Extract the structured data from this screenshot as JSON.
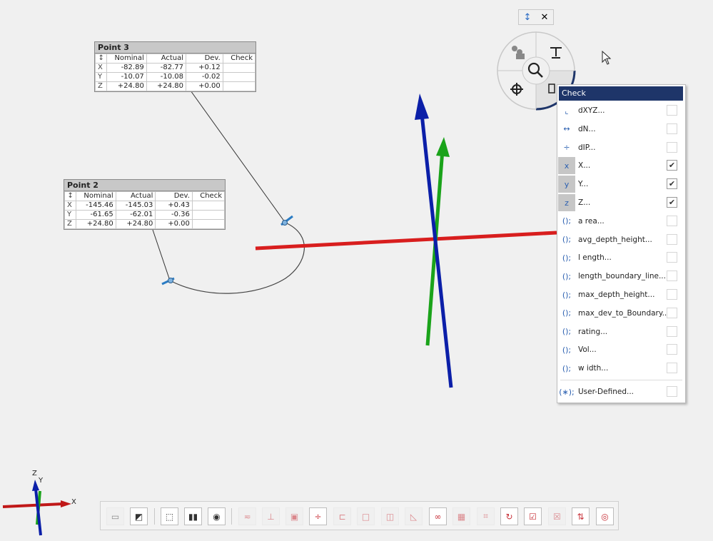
{
  "point3": {
    "title": "Point 3",
    "headers": [
      "↕",
      "Nominal",
      "Actual",
      "Dev.",
      "Check"
    ],
    "rows": [
      {
        "axis": "X",
        "nominal": "-82.89",
        "actual": "-82.77",
        "dev": "+0.12",
        "check": ""
      },
      {
        "axis": "Y",
        "nominal": "-10.07",
        "actual": "-10.08",
        "dev": "-0.02",
        "check": ""
      },
      {
        "axis": "Z",
        "nominal": "+24.80",
        "actual": "+24.80",
        "dev": "+0.00",
        "check": ""
      }
    ]
  },
  "point2": {
    "title": "Point 2",
    "headers": [
      "↕",
      "Nominal",
      "Actual",
      "Dev.",
      "Check"
    ],
    "rows": [
      {
        "axis": "X",
        "nominal": "-145.46",
        "actual": "-145.03",
        "dev": "+0.43",
        "check": ""
      },
      {
        "axis": "Y",
        "nominal": "-61.65",
        "actual": "-62.01",
        "dev": "-0.36",
        "check": ""
      },
      {
        "axis": "Z",
        "nominal": "+24.80",
        "actual": "+24.80",
        "dev": "+0.00",
        "check": ""
      }
    ]
  },
  "mini_panel": {
    "pin": "↕",
    "close": "✕"
  },
  "check_menu": {
    "title": "Check",
    "items": [
      {
        "label": "dXYZ...",
        "icon": "dxyz-icon",
        "glyph": "⌞",
        "checked": false,
        "selected": false
      },
      {
        "label": "dN...",
        "icon": "dn-icon",
        "glyph": "↔",
        "checked": false,
        "selected": false
      },
      {
        "label": "dIP...",
        "icon": "dip-icon",
        "glyph": "÷",
        "checked": false,
        "selected": false
      },
      {
        "label": "X...",
        "icon": "x-icon",
        "glyph": "x",
        "checked": true,
        "selected": true
      },
      {
        "label": "Y...",
        "icon": "y-icon",
        "glyph": "y",
        "checked": true,
        "selected": true
      },
      {
        "label": "Z...",
        "icon": "z-icon",
        "glyph": "z",
        "checked": true,
        "selected": true
      },
      {
        "label": "a rea...",
        "icon": "function-icon",
        "glyph": "();",
        "checked": false,
        "selected": false
      },
      {
        "label": "avg_depth_height...",
        "icon": "function-icon",
        "glyph": "();",
        "checked": false,
        "selected": false
      },
      {
        "label": "l ength...",
        "icon": "function-icon",
        "glyph": "();",
        "checked": false,
        "selected": false
      },
      {
        "label": "length_boundary_line...",
        "icon": "function-icon",
        "glyph": "();",
        "checked": false,
        "selected": false
      },
      {
        "label": "max_depth_height...",
        "icon": "function-icon",
        "glyph": "();",
        "checked": false,
        "selected": false
      },
      {
        "label": "max_dev_to_Boundary...",
        "icon": "function-icon",
        "glyph": "();",
        "checked": false,
        "selected": false
      },
      {
        "label": "rating...",
        "icon": "function-icon",
        "glyph": "();",
        "checked": false,
        "selected": false
      },
      {
        "label": "Vol...",
        "icon": "function-icon",
        "glyph": "();",
        "checked": false,
        "selected": false
      },
      {
        "label": "w idth...",
        "icon": "function-icon",
        "glyph": "();",
        "checked": false,
        "selected": false
      }
    ],
    "user_defined": {
      "label": "User-Defined...",
      "glyph": "(∗);",
      "checked": false
    }
  },
  "axes_triad": {
    "x": "X",
    "y": "Y",
    "z": "Z"
  },
  "colors": {
    "x_axis": "#d81e1e",
    "y_axis": "#1aa31a",
    "z_axis": "#0b1fa8",
    "menu_header": "#1e3569",
    "tool_red": "#c8323a"
  },
  "toolbar": {
    "buttons": [
      {
        "name": "view-mode-button",
        "glyph": "▭",
        "state": "dis"
      },
      {
        "name": "hide-toggle-button",
        "glyph": "◩",
        "state": "act"
      },
      {
        "name": "select-button",
        "glyph": "⬚",
        "state": "act"
      },
      {
        "name": "align-button",
        "glyph": "▮▮",
        "state": "act"
      },
      {
        "name": "view-fit-button",
        "glyph": "◉",
        "state": "act"
      },
      {
        "name": "tool-1-button",
        "glyph": "≂",
        "state": "dis"
      },
      {
        "name": "tool-2-button",
        "glyph": "⊥",
        "state": "dis"
      },
      {
        "name": "tool-3-button",
        "glyph": "▣",
        "state": "dis"
      },
      {
        "name": "tool-4-button",
        "glyph": "÷",
        "state": "act"
      },
      {
        "name": "tool-5-button",
        "glyph": "⊏",
        "state": "dis"
      },
      {
        "name": "tool-6-button",
        "glyph": "□",
        "state": "dis"
      },
      {
        "name": "tool-7-button",
        "glyph": "◫",
        "state": "dis"
      },
      {
        "name": "tool-8-button",
        "glyph": "◺",
        "state": "dis"
      },
      {
        "name": "tool-9-button",
        "glyph": "∞",
        "state": "act"
      },
      {
        "name": "tool-10-button",
        "glyph": "▦",
        "state": "dis"
      },
      {
        "name": "tool-11-button",
        "glyph": "⌗",
        "state": "dis"
      },
      {
        "name": "tool-12-button",
        "glyph": "↻",
        "state": "act"
      },
      {
        "name": "check-button",
        "glyph": "☑",
        "state": "act"
      },
      {
        "name": "tool-14-button",
        "glyph": "☒",
        "state": "dis"
      },
      {
        "name": "tool-15-button",
        "glyph": "⇅",
        "state": "act"
      },
      {
        "name": "target-button",
        "glyph": "◎",
        "state": "act"
      }
    ]
  }
}
